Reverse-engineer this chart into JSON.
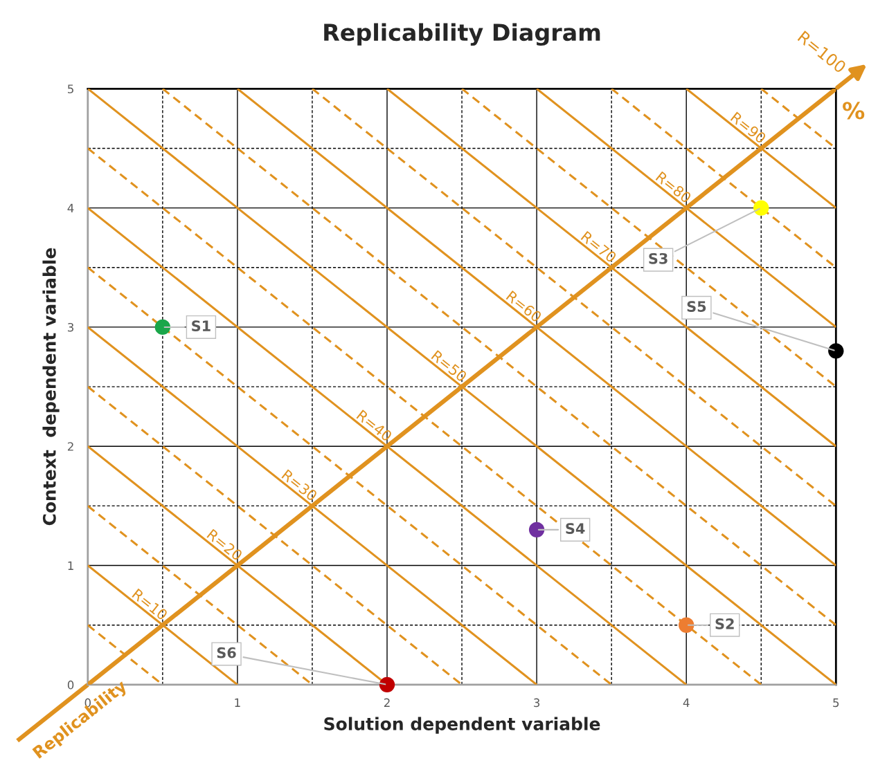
{
  "chart_data": {
    "type": "scatter",
    "title": "Replicability Diagram",
    "xlabel": "Solution dependent variable",
    "ylabel": "Context  dependent variable",
    "xlim": [
      0,
      5
    ],
    "ylim": [
      0,
      5
    ],
    "xticks": [
      0,
      1,
      2,
      3,
      4,
      5
    ],
    "yticks": [
      0,
      1,
      2,
      3,
      4,
      5
    ],
    "grid": true,
    "legend": false,
    "series": [
      {
        "type": "line",
        "color": "#e0921f",
        "line_style": "solid",
        "x": [
          0,
          5
        ],
        "values": [
          0,
          5
        ]
      },
      {
        "type": "line",
        "color": "#e0921f",
        "line_style": "solid",
        "x": [
          0,
          1
        ],
        "values": [
          1,
          0
        ]
      },
      {
        "type": "line",
        "color": "#e0921f",
        "line_style": "solid",
        "x": [
          0,
          2
        ],
        "values": [
          2,
          0
        ]
      },
      {
        "type": "line",
        "color": "#e0921f",
        "line_style": "solid",
        "x": [
          0,
          3
        ],
        "values": [
          3,
          0
        ]
      },
      {
        "type": "line",
        "color": "#e0921f",
        "line_style": "solid",
        "x": [
          0,
          4
        ],
        "values": [
          4,
          0
        ]
      },
      {
        "type": "line",
        "color": "#e0921f",
        "line_style": "solid",
        "x": [
          0,
          5
        ],
        "values": [
          5,
          0
        ]
      },
      {
        "type": "line",
        "color": "#e0921f",
        "line_style": "solid",
        "x": [
          1,
          5
        ],
        "values": [
          5,
          1
        ]
      },
      {
        "type": "line",
        "color": "#e0921f",
        "line_style": "solid",
        "x": [
          2,
          5
        ],
        "values": [
          5,
          2
        ]
      },
      {
        "type": "line",
        "color": "#e0921f",
        "line_style": "solid",
        "x": [
          3,
          5
        ],
        "values": [
          5,
          3
        ]
      },
      {
        "type": "line",
        "color": "#e0921f",
        "line_style": "solid",
        "x": [
          4,
          5
        ],
        "values": [
          5,
          4
        ]
      },
      {
        "type": "line",
        "color": "#e0921f",
        "line_style": "dashed",
        "x": [
          0,
          0.5
        ],
        "values": [
          0.5,
          0
        ]
      },
      {
        "type": "line",
        "color": "#e0921f",
        "line_style": "dashed",
        "x": [
          0,
          1.5
        ],
        "values": [
          1.5,
          0
        ]
      },
      {
        "type": "line",
        "color": "#e0921f",
        "line_style": "dashed",
        "x": [
          0,
          2.5
        ],
        "values": [
          2.5,
          0
        ]
      },
      {
        "type": "line",
        "color": "#e0921f",
        "line_style": "dashed",
        "x": [
          0,
          3.5
        ],
        "values": [
          3.5,
          0
        ]
      },
      {
        "type": "line",
        "color": "#e0921f",
        "line_style": "dashed",
        "x": [
          0,
          4.5
        ],
        "values": [
          4.5,
          0
        ]
      },
      {
        "type": "line",
        "color": "#e0921f",
        "line_style": "dashed",
        "x": [
          0.5,
          5
        ],
        "values": [
          5,
          0.5
        ]
      },
      {
        "type": "line",
        "color": "#e0921f",
        "line_style": "dashed",
        "x": [
          1.5,
          5
        ],
        "values": [
          5,
          1.5
        ]
      },
      {
        "type": "line",
        "color": "#e0921f",
        "line_style": "dashed",
        "x": [
          2.5,
          5
        ],
        "values": [
          5,
          2.5
        ]
      },
      {
        "type": "line",
        "color": "#e0921f",
        "line_style": "dashed",
        "x": [
          3.5,
          5
        ],
        "values": [
          5,
          3.5
        ]
      },
      {
        "type": "line",
        "color": "#e0921f",
        "line_style": "dashed",
        "x": [
          4.5,
          5
        ],
        "values": [
          5,
          4.5
        ]
      },
      {
        "name": "S1",
        "marker": "circle",
        "color": "#1aa64a",
        "x": [
          0.5
        ],
        "values": [
          3
        ]
      },
      {
        "name": "S2",
        "marker": "circle",
        "color": "#ed7d31",
        "x": [
          4
        ],
        "values": [
          0.5
        ]
      },
      {
        "name": "S3",
        "marker": "circle",
        "color": "#ffff00",
        "x": [
          4.5
        ],
        "values": [
          4
        ]
      },
      {
        "name": "S4",
        "marker": "circle",
        "color": "#7030a0",
        "x": [
          3
        ],
        "values": [
          1.3
        ]
      },
      {
        "name": "S5",
        "marker": "circle",
        "color": "#000000",
        "x": [
          5
        ],
        "values": [
          2.8
        ]
      },
      {
        "name": "S6",
        "marker": "circle",
        "color": "#c00000",
        "x": [
          2
        ],
        "values": [
          0
        ]
      }
    ],
    "annotations": [
      {
        "text": "R=10",
        "x": 0.38,
        "y": 0.62
      },
      {
        "text": "R=20",
        "x": 0.88,
        "y": 1.12
      },
      {
        "text": "R=30",
        "x": 1.38,
        "y": 1.62
      },
      {
        "text": "R=40",
        "x": 1.88,
        "y": 2.12
      },
      {
        "text": "R=50",
        "x": 2.38,
        "y": 2.62
      },
      {
        "text": "R=60",
        "x": 2.88,
        "y": 3.12
      },
      {
        "text": "R=70",
        "x": 3.38,
        "y": 3.62
      },
      {
        "text": "R=80",
        "x": 3.88,
        "y": 4.12
      },
      {
        "text": "R=90",
        "x": 4.38,
        "y": 4.62
      },
      "R=100",
      "Replicability",
      "%"
    ]
  }
}
